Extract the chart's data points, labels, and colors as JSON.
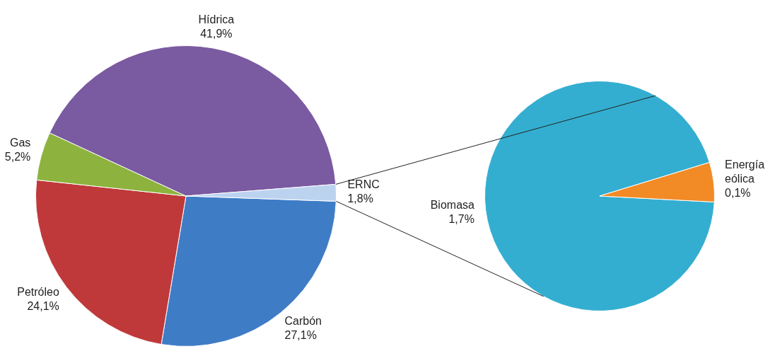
{
  "chart_data": [
    {
      "type": "pie",
      "categories": [
        "Carbón",
        "Petróleo",
        "Gas",
        "Hídrica",
        "ERNC"
      ],
      "values": [
        27.1,
        24.1,
        5.2,
        41.9,
        1.8
      ],
      "value_labels": [
        "27,1%",
        "24,1%",
        "5,2%",
        "41,9%",
        "1,8%"
      ],
      "colors": [
        "#3f7cc6",
        "#c0393a",
        "#8db33e",
        "#7a5aa0",
        "#bcd3f0"
      ],
      "legend": false
    },
    {
      "type": "pie",
      "categories": [
        "Biomasa",
        "Energía eólica"
      ],
      "values": [
        1.7,
        0.1
      ],
      "value_labels": [
        "1,7%",
        "0,1%"
      ],
      "colors": [
        "#34aed0",
        "#f28a26"
      ],
      "legend": false
    }
  ]
}
